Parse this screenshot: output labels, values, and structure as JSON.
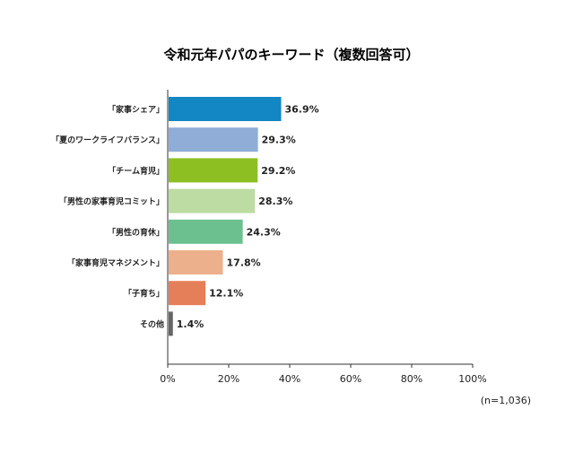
{
  "chart_data": {
    "type": "bar",
    "orientation": "horizontal",
    "title": "令和元年パパのキーワード（複数回答可）",
    "categories": [
      "「家事シェア」",
      "「夏のワークライフバランス」",
      "「チーム育児」",
      "「男性の家事育児コミット」",
      "「男性の育休」",
      "「家事育児マネジメント」",
      "「子育ち」",
      "その他"
    ],
    "values": [
      36.9,
      29.3,
      29.2,
      28.3,
      24.3,
      17.8,
      12.1,
      1.4
    ],
    "value_labels": [
      "36.9%",
      "29.3%",
      "29.2%",
      "28.3%",
      "24.3%",
      "17.8%",
      "12.1%",
      "1.4%"
    ],
    "colors": [
      "#1287c4",
      "#8fadd6",
      "#8dbf23",
      "#bcdca3",
      "#6cc090",
      "#edb08c",
      "#e57f59",
      "#666666"
    ],
    "xlim": [
      0,
      100
    ],
    "x_ticks": [
      "0%",
      "20%",
      "40%",
      "60%",
      "80%",
      "100%"
    ],
    "x_tick_values": [
      0,
      20,
      40,
      60,
      80,
      100
    ],
    "note": "(n=1,036)",
    "grid": false,
    "legend": "none"
  }
}
